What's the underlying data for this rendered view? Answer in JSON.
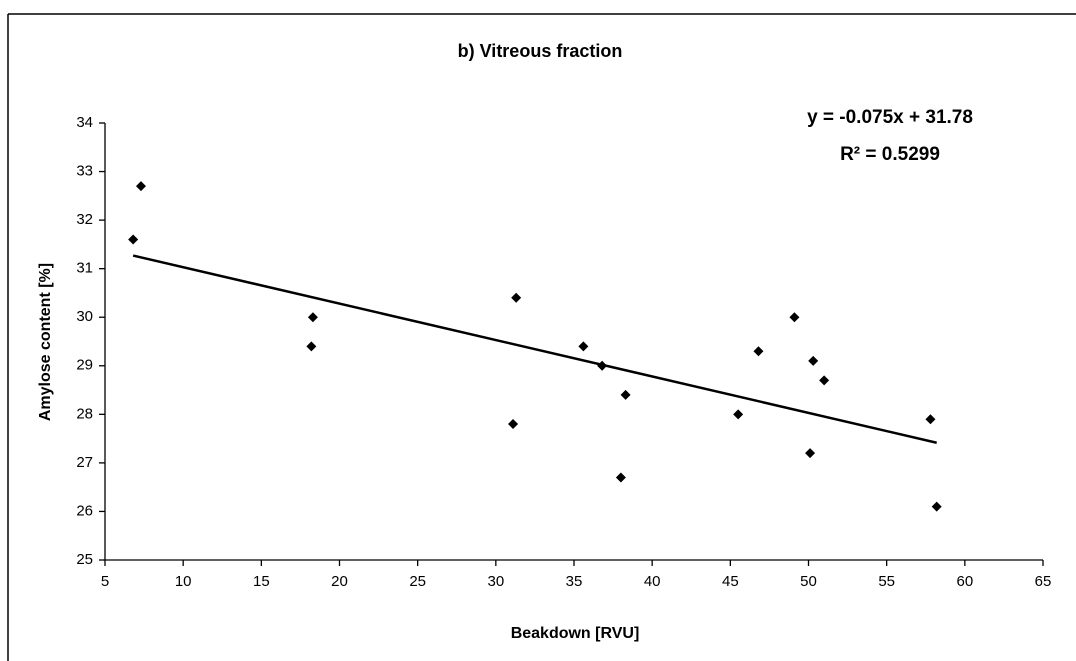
{
  "chart_data": {
    "type": "scatter",
    "title": "b) Vitreous fraction",
    "x_label": "Beakdown [RVU]",
    "y_label": "Amylose content [%]",
    "annotations": [
      "y = -0.075x + 31.78",
      "R² = 0.5299"
    ],
    "series": [
      {
        "name": "Vitreous fraction",
        "color": "#000000",
        "x": [
          6.8,
          7.3,
          18.2,
          18.3,
          31.1,
          31.3,
          35.6,
          36.8,
          38.0,
          38.3,
          45.5,
          46.8,
          49.1,
          50.1,
          50.3,
          51.0,
          57.8,
          58.2
        ],
        "values": [
          31.6,
          32.7,
          29.4,
          30.0,
          27.8,
          30.4,
          29.4,
          29.0,
          26.7,
          28.4,
          28.0,
          29.3,
          30.0,
          27.2,
          29.1,
          28.7,
          27.9,
          26.1
        ]
      }
    ],
    "trendline": {
      "slope": -0.075,
      "intercept": 31.78,
      "color": "#000000"
    },
    "xlim": [
      5,
      65
    ],
    "xticks": [
      5,
      10,
      15,
      20,
      25,
      30,
      35,
      40,
      45,
      50,
      55,
      60,
      65
    ],
    "ylim": [
      25,
      34
    ],
    "yticks": [
      25,
      26,
      27,
      28,
      29,
      30,
      31,
      32,
      33,
      34
    ],
    "grid": false
  }
}
